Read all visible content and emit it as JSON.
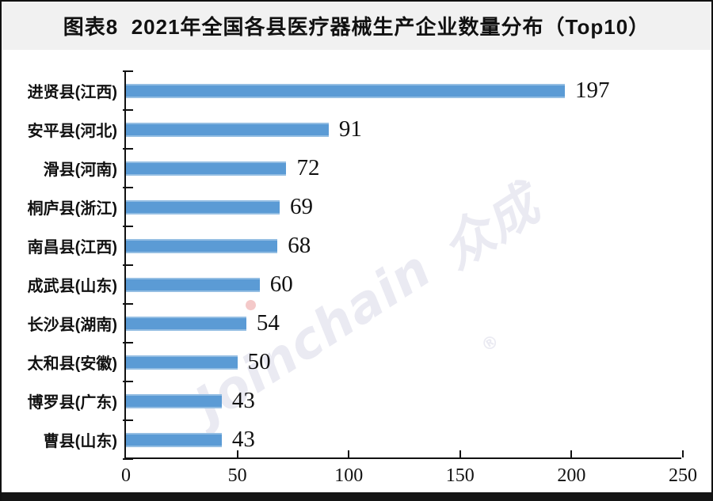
{
  "title": "图表8  2021年全国各县医疗器械生产企业数量分布（Top10）",
  "watermark": {
    "brand": "Joinchain",
    "reg": "®",
    "suffix": "众成"
  },
  "colors": {
    "bar": "#5B9BD5",
    "title_band_bg": "#f1f1f1",
    "axis": "#111111",
    "watermark_text": "#eaeaf2",
    "watermark_dot": "#f4c9c9"
  },
  "chart_data": {
    "type": "bar",
    "orientation": "horizontal",
    "title": "图表8 2021年全国各县医疗器械生产企业数量分布（Top10）",
    "categories": [
      "进贤县(江西)",
      "安平县(河北)",
      "滑县(河南)",
      "桐庐县(浙江)",
      "南昌县(江西)",
      "成武县(山东)",
      "长沙县(湖南)",
      "太和县(安徽)",
      "博罗县(广东)",
      "曹县(山东)"
    ],
    "values": [
      197,
      91,
      72,
      69,
      68,
      60,
      54,
      50,
      43,
      43
    ],
    "xlabel": "",
    "ylabel": "",
    "xlim": [
      0,
      250
    ],
    "x_ticks": [
      0,
      50,
      100,
      150,
      200,
      250
    ],
    "grid": false,
    "legend": false,
    "value_labels": true,
    "bar_color": "#5B9BD5"
  }
}
